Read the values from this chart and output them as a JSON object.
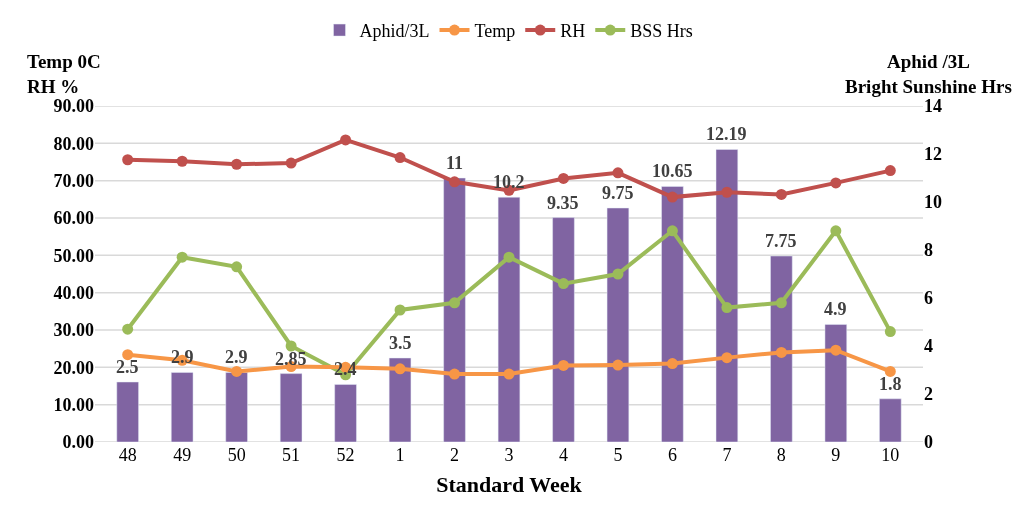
{
  "chart_data": {
    "type": "bar",
    "xlabel": "Standard Week",
    "ylabel": "Temp 0C\nRH %",
    "y2label": "Aphid /3L\nBright Sunshine Hrs",
    "categories": [
      "48",
      "49",
      "50",
      "51",
      "52",
      "1",
      "2",
      "3",
      "4",
      "5",
      "6",
      "7",
      "8",
      "9",
      "10"
    ],
    "series": [
      {
        "name": "Aphid/3L",
        "axis": "y2",
        "color": "#8064a2",
        "values": [
          2.5,
          2.9,
          2.9,
          2.85,
          2.4,
          3.5,
          11,
          10.2,
          9.35,
          9.75,
          10.65,
          12.19,
          7.75,
          4.9,
          1.8
        ],
        "value_labels": [
          "2.5",
          "2.9",
          "2.9",
          "2.85",
          "2.4",
          "3.5",
          "11",
          "10.2",
          "9.35",
          "9.75",
          "10.65",
          "12.19",
          "7.75",
          "4.9",
          "1.8"
        ]
      },
      {
        "name": "Temp",
        "type": "line",
        "color": "#f79646",
        "values": [
          23.4,
          21.9,
          18.9,
          20.2,
          20.0,
          19.6,
          18.2,
          18.2,
          20.5,
          20.6,
          21.0,
          22.6,
          24.0,
          24.6,
          18.9
        ]
      },
      {
        "name": "RH",
        "type": "line",
        "color": "#c0504d",
        "values": [
          75.6,
          75.2,
          74.4,
          74.7,
          80.9,
          76.2,
          69.7,
          67.4,
          70.6,
          72.1,
          65.6,
          66.9,
          66.3,
          69.4,
          72.7
        ]
      },
      {
        "name": "BSS Hrs",
        "type": "line",
        "axis": "y2",
        "color": "#9bbb59",
        "values": [
          4.7,
          7.7,
          7.3,
          4.0,
          2.8,
          5.5,
          5.8,
          7.7,
          6.6,
          7.0,
          8.8,
          5.6,
          5.8,
          8.8,
          4.6
        ]
      }
    ],
    "ylim": [
      0,
      90
    ],
    "yticks": [
      {
        "value": 0,
        "label": "0.00"
      },
      {
        "value": 10,
        "label": "10.00"
      },
      {
        "value": 20,
        "label": "20.00"
      },
      {
        "value": 30,
        "label": "30.00"
      },
      {
        "value": 40,
        "label": "40.00"
      },
      {
        "value": 50,
        "label": "50.00"
      },
      {
        "value": 60,
        "label": "60.00"
      },
      {
        "value": 70,
        "label": "70.00"
      },
      {
        "value": 80,
        "label": "80.00"
      },
      {
        "value": 90,
        "label": "90.00"
      }
    ],
    "y2lim": [
      0,
      14
    ],
    "y2ticks": [
      0,
      2,
      4,
      6,
      8,
      10,
      12,
      14
    ],
    "grid": "y",
    "legend": "top",
    "marker": "circle",
    "line_style": "solid"
  }
}
